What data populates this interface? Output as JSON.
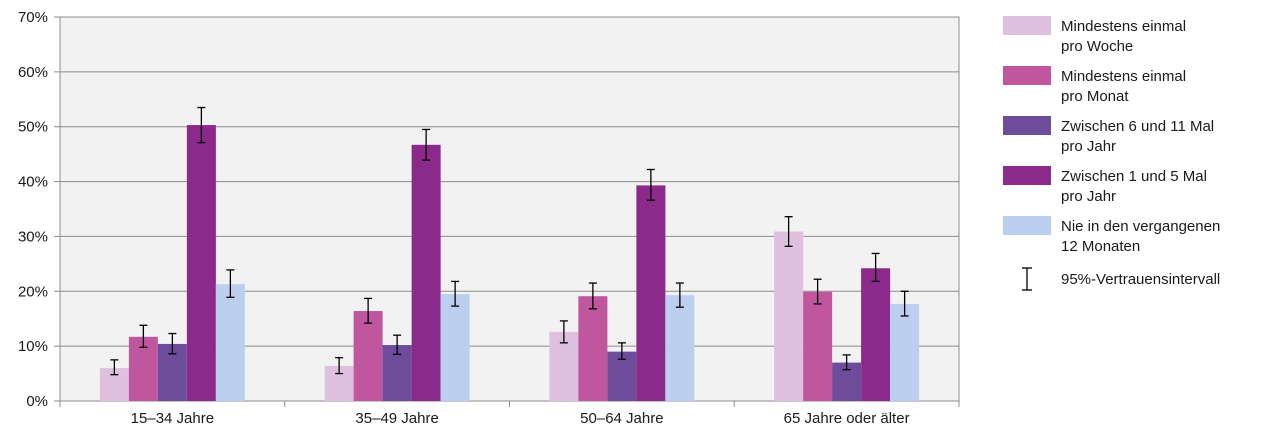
{
  "chart_data": {
    "type": "bar",
    "categories": [
      "15–34 Jahre",
      "35–49 Jahre",
      "50–64 Jahre",
      "65 Jahre oder älter"
    ],
    "y_ticks": [
      "0%",
      "10%",
      "20%",
      "30%",
      "40%",
      "50%",
      "60%",
      "70%"
    ],
    "ylim": [
      0,
      70
    ],
    "grid": true,
    "legend_position": "right",
    "series": [
      {
        "name": "Mindestens einmal pro Woche",
        "name_lines": [
          "Mindestens einmal",
          "pro Woche"
        ],
        "color": "#dfc0de",
        "values": [
          6.0,
          6.4,
          12.6,
          30.9
        ],
        "ci_low": [
          4.8,
          5.0,
          10.6,
          28.2
        ],
        "ci_high": [
          7.5,
          7.9,
          14.6,
          33.6
        ]
      },
      {
        "name": "Mindestens einmal pro Monat",
        "name_lines": [
          "Mindestens einmal",
          "pro Monat"
        ],
        "color": "#c0569e",
        "values": [
          11.7,
          16.4,
          19.1,
          19.9
        ],
        "ci_low": [
          9.8,
          14.2,
          16.8,
          17.7
        ],
        "ci_high": [
          13.8,
          18.7,
          21.5,
          22.2
        ]
      },
      {
        "name": "Zwischen 6 und 11 Mal pro Jahr",
        "name_lines": [
          "Zwischen 6 und 11 Mal",
          "pro Jahr"
        ],
        "color": "#6e4c9c",
        "values": [
          10.4,
          10.2,
          9.0,
          7.0
        ],
        "ci_low": [
          8.6,
          8.5,
          7.6,
          5.7
        ],
        "ci_high": [
          12.3,
          12.0,
          10.6,
          8.4
        ]
      },
      {
        "name": "Zwischen 1 und 5 Mal pro Jahr",
        "name_lines": [
          "Zwischen 1 und 5 Mal",
          "pro Jahr"
        ],
        "color": "#8b2a8a",
        "values": [
          50.3,
          46.7,
          39.3,
          24.2
        ],
        "ci_low": [
          47.1,
          43.9,
          36.6,
          21.8
        ],
        "ci_high": [
          53.5,
          49.5,
          42.2,
          26.9
        ]
      },
      {
        "name": "Nie in den vergangenen 12 Monaten",
        "name_lines": [
          "Nie in den vergangenen",
          "12 Monaten"
        ],
        "color": "#bccfee",
        "values": [
          21.3,
          19.5,
          19.3,
          17.7
        ],
        "ci_low": [
          18.9,
          17.3,
          17.1,
          15.5
        ],
        "ci_high": [
          23.9,
          21.8,
          21.5,
          20.0
        ]
      }
    ],
    "ci_legend_label": "95%-Vertrauensintervall"
  }
}
